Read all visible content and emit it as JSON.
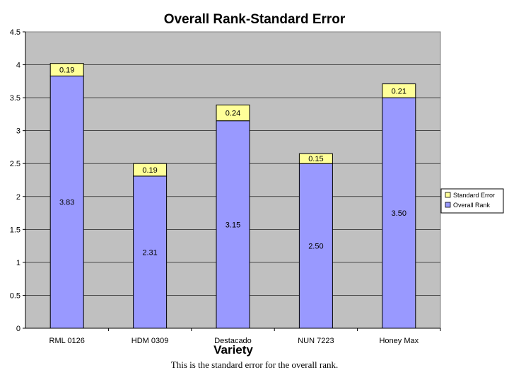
{
  "caption": "This is the standard error for the overall rank.",
  "chart_data": {
    "type": "bar",
    "stacked": true,
    "title": "Overall Rank-Standard Error",
    "xlabel": "Variety",
    "ylabel": "",
    "ylim": [
      0,
      4.5
    ],
    "yticks": [
      "0",
      "0.5",
      "1",
      "1.5",
      "2",
      "2.5",
      "3",
      "3.5",
      "4",
      "4.5"
    ],
    "grid": true,
    "legend_position": "right",
    "categories": [
      "RML 0126",
      "HDM 0309",
      "Destacado",
      "NUN 7223",
      "Honey Max"
    ],
    "series": [
      {
        "name": "Overall Rank",
        "values": [
          3.83,
          2.31,
          3.15,
          2.5,
          3.5
        ],
        "labels": [
          "3.83",
          "2.31",
          "3.15",
          "2.50",
          "3.50"
        ],
        "color": "#9999ff"
      },
      {
        "name": "Standard Error",
        "values": [
          0.19,
          0.19,
          0.24,
          0.15,
          0.21
        ],
        "labels": [
          "0.19",
          "0.19",
          "0.24",
          "0.15",
          "0.21"
        ],
        "color": "#ffff99"
      }
    ],
    "legend_order": [
      "Standard Error",
      "Overall Rank"
    ],
    "plot_background": "#c0c0c0"
  }
}
